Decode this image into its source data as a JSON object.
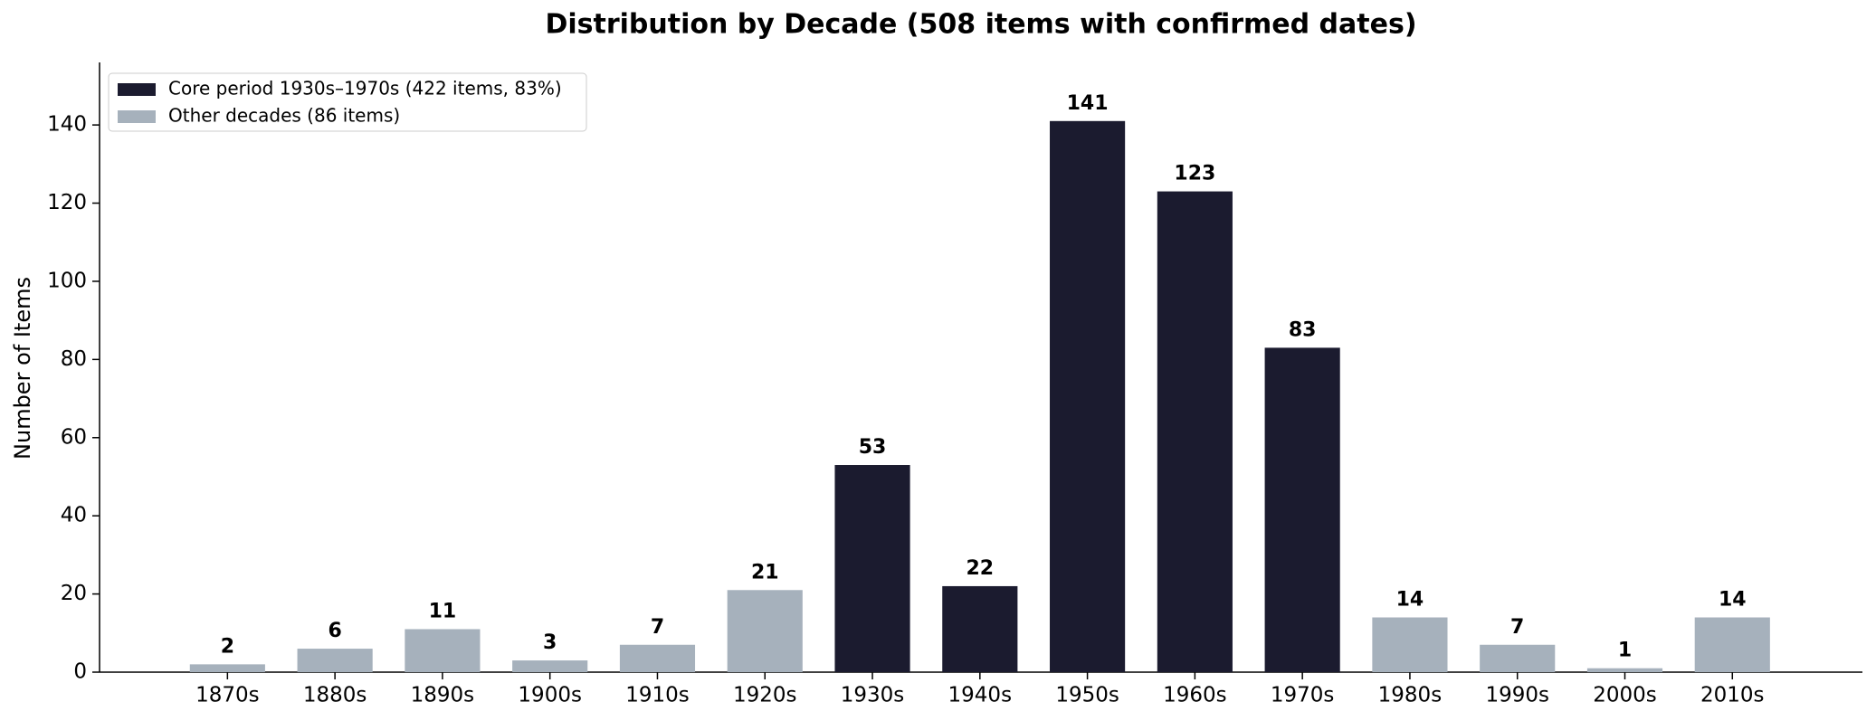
{
  "chart_data": {
    "type": "bar",
    "title": "Distribution by Decade (508 items with confirmed dates)",
    "y_label": "Number of Items",
    "categories": [
      "1870s",
      "1880s",
      "1890s",
      "1900s",
      "1910s",
      "1920s",
      "1930s",
      "1940s",
      "1950s",
      "1960s",
      "1970s",
      "1980s",
      "1990s",
      "2000s",
      "2010s"
    ],
    "series": [
      {
        "name": "Core period 1930s–1970s (422 items, 83%)",
        "color": "#1b1b2f",
        "values": [
          null,
          null,
          null,
          null,
          null,
          null,
          53,
          22,
          141,
          123,
          83,
          null,
          null,
          null,
          null
        ]
      },
      {
        "name": "Other decades (86 items)",
        "color": "#a6b1bc",
        "values": [
          2,
          6,
          11,
          3,
          7,
          21,
          null,
          null,
          null,
          null,
          null,
          14,
          7,
          1,
          14
        ]
      }
    ],
    "ylim": [
      0,
      156
    ],
    "yticks": [
      0,
      20,
      40,
      60,
      80,
      100,
      120,
      140
    ],
    "legend": "upper left",
    "grid": false
  }
}
